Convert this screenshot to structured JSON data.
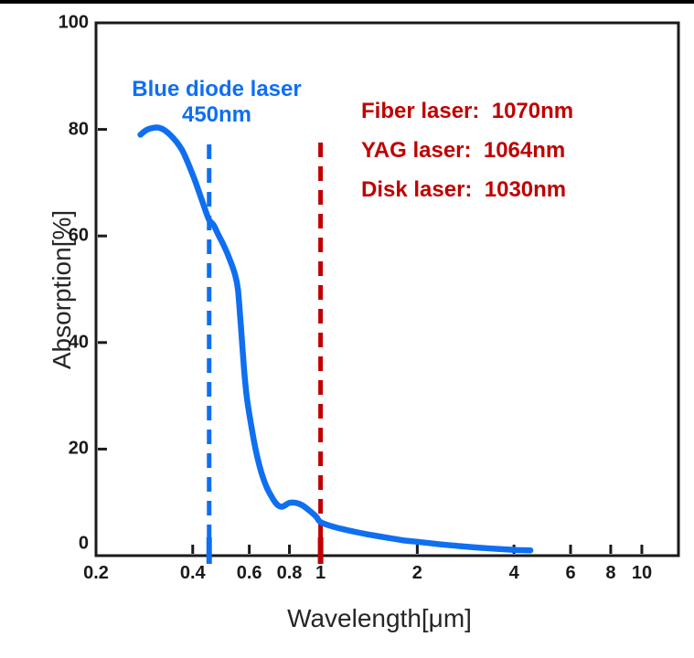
{
  "page": {
    "background_color": "#FFFFFF",
    "top_rule_color": "#000000"
  },
  "chart_data": {
    "type": "line",
    "title": "",
    "xlabel": "Wavelength[μm]",
    "ylabel": "Absorption[%]",
    "x_scale": "log",
    "xlim": [
      0.2,
      13
    ],
    "ylim": [
      0,
      100
    ],
    "grid": false,
    "legend": "none",
    "axis_color": "#1A1A1A",
    "x_ticks": [
      {
        "value": 0.2,
        "label": "0.2"
      },
      {
        "value": 0.4,
        "label": "0.4"
      },
      {
        "value": 0.6,
        "label": "0.6"
      },
      {
        "value": 0.8,
        "label": "0.8"
      },
      {
        "value": 1,
        "label": "1"
      },
      {
        "value": 2,
        "label": "2"
      },
      {
        "value": 4,
        "label": "4"
      },
      {
        "value": 6,
        "label": "6"
      },
      {
        "value": 8,
        "label": "8"
      },
      {
        "value": 10,
        "label": "10"
      }
    ],
    "y_ticks": [
      {
        "value": 0,
        "label": "0"
      },
      {
        "value": 20,
        "label": "20"
      },
      {
        "value": 40,
        "label": "40"
      },
      {
        "value": 60,
        "label": "60"
      },
      {
        "value": 80,
        "label": "80"
      },
      {
        "value": 100,
        "label": "100"
      }
    ],
    "series": [
      {
        "name": "metal-absorption-curve",
        "color": "#0F6FF0",
        "points": [
          [
            0.275,
            79.0
          ],
          [
            0.29,
            80.0
          ],
          [
            0.315,
            80.3
          ],
          [
            0.34,
            79.0
          ],
          [
            0.37,
            76.2
          ],
          [
            0.4,
            71.5
          ],
          [
            0.42,
            68.0
          ],
          [
            0.44,
            64.5
          ],
          [
            0.45,
            63.0
          ],
          [
            0.465,
            62.0
          ],
          [
            0.48,
            60.3
          ],
          [
            0.5,
            58.2
          ],
          [
            0.52,
            55.8
          ],
          [
            0.54,
            53.0
          ],
          [
            0.553,
            50.0
          ],
          [
            0.565,
            43.0
          ],
          [
            0.578,
            35.0
          ],
          [
            0.59,
            29.5
          ],
          [
            0.61,
            24.0
          ],
          [
            0.63,
            19.5
          ],
          [
            0.655,
            15.5
          ],
          [
            0.68,
            12.8
          ],
          [
            0.71,
            10.7
          ],
          [
            0.735,
            9.5
          ],
          [
            0.76,
            9.2
          ],
          [
            0.8,
            9.9
          ],
          [
            0.84,
            9.9
          ],
          [
            0.88,
            9.4
          ],
          [
            0.93,
            8.3
          ],
          [
            0.97,
            7.3
          ],
          [
            1.0,
            6.3
          ],
          [
            1.1,
            5.4
          ],
          [
            1.25,
            4.6
          ],
          [
            1.4,
            4.0
          ],
          [
            1.6,
            3.4
          ],
          [
            1.8,
            2.9
          ],
          [
            2.0,
            2.6
          ],
          [
            2.3,
            2.2
          ],
          [
            2.7,
            1.8
          ],
          [
            3.1,
            1.5
          ],
          [
            3.6,
            1.25
          ],
          [
            4.1,
            1.05
          ],
          [
            4.5,
            1.0
          ]
        ]
      }
    ],
    "markers": [
      {
        "id": "blue-diode-laser",
        "x": 0.45,
        "style": "dashed",
        "color": "#0F6FF0",
        "label_line1": "Blue diode laser",
        "label_line2": "450nm"
      },
      {
        "id": "infrared-lasers",
        "x": 1.0,
        "style": "dashed",
        "color": "#C00000",
        "labels": [
          "Fiber laser:  1070nm",
          "YAG laser:  1064nm",
          "Disk laser:  1030nm"
        ]
      }
    ]
  }
}
